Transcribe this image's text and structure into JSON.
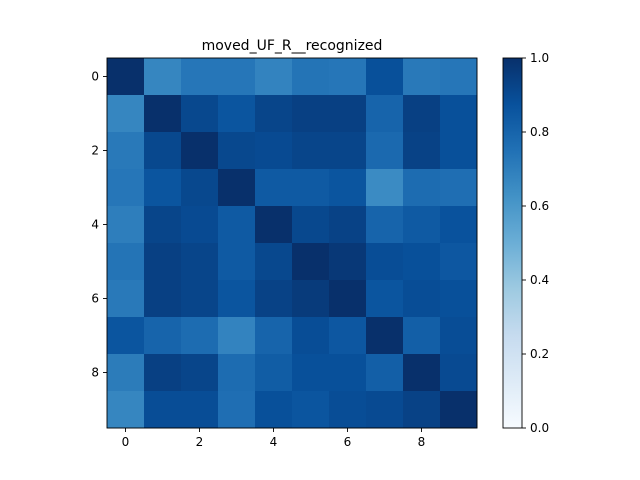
{
  "chart_data": {
    "type": "heatmap",
    "title": "moved_UF_R__recognized",
    "xlabel": "",
    "ylabel": "",
    "rows": 10,
    "cols": 10,
    "x_ticks": [
      0,
      2,
      4,
      6,
      8
    ],
    "y_ticks": [
      0,
      2,
      4,
      6,
      8
    ],
    "colormap": "Blues",
    "vmin": 0.0,
    "vmax": 1.0,
    "colorbar_ticks": [
      "0.0",
      "0.2",
      "0.4",
      "0.6",
      "0.8",
      "1.0"
    ],
    "grid": false,
    "values": [
      [
        1.0,
        0.67,
        0.73,
        0.73,
        0.68,
        0.74,
        0.73,
        0.88,
        0.72,
        0.73
      ],
      [
        0.67,
        1.0,
        0.91,
        0.86,
        0.92,
        0.94,
        0.94,
        0.8,
        0.94,
        0.88
      ],
      [
        0.72,
        0.91,
        1.0,
        0.91,
        0.9,
        0.92,
        0.92,
        0.78,
        0.93,
        0.88
      ],
      [
        0.73,
        0.86,
        0.91,
        1.0,
        0.84,
        0.84,
        0.86,
        0.65,
        0.77,
        0.76
      ],
      [
        0.7,
        0.92,
        0.9,
        0.84,
        1.0,
        0.91,
        0.93,
        0.8,
        0.84,
        0.87
      ],
      [
        0.74,
        0.94,
        0.92,
        0.84,
        0.91,
        1.0,
        0.97,
        0.89,
        0.88,
        0.85
      ],
      [
        0.72,
        0.94,
        0.92,
        0.86,
        0.93,
        0.96,
        1.0,
        0.86,
        0.89,
        0.88
      ],
      [
        0.86,
        0.8,
        0.77,
        0.68,
        0.8,
        0.89,
        0.85,
        1.0,
        0.82,
        0.89
      ],
      [
        0.71,
        0.94,
        0.92,
        0.77,
        0.83,
        0.88,
        0.88,
        0.82,
        1.0,
        0.9
      ],
      [
        0.67,
        0.89,
        0.89,
        0.76,
        0.88,
        0.86,
        0.89,
        0.9,
        0.93,
        1.0
      ]
    ]
  }
}
